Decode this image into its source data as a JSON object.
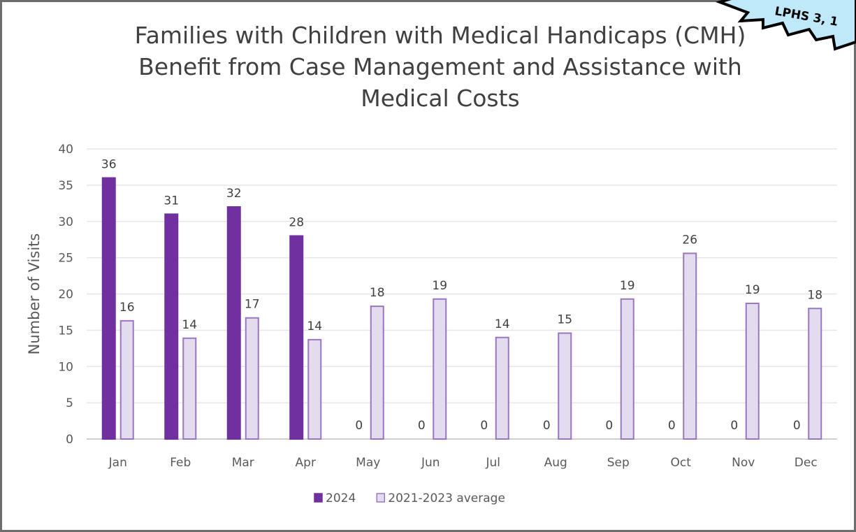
{
  "chart_data": {
    "type": "bar",
    "title_lines": [
      "Families with Children with Medical Handicaps (CMH)",
      "Benefit from Case Management and Assistance with",
      "Medical Costs"
    ],
    "xlabel": "",
    "ylabel": "Number of Visits",
    "ylim": [
      0,
      40
    ],
    "yticks": [
      0,
      5,
      10,
      15,
      20,
      25,
      30,
      35,
      40
    ],
    "grid": true,
    "legend_position": "bottom",
    "categories": [
      "Jan",
      "Feb",
      "Mar",
      "Apr",
      "May",
      "Jun",
      "Jul",
      "Aug",
      "Sep",
      "Oct",
      "Nov",
      "Dec"
    ],
    "series": [
      {
        "name": "2024",
        "values": [
          36,
          31,
          32,
          28,
          0,
          0,
          0,
          0,
          0,
          0,
          0,
          0
        ],
        "labels": [
          "36",
          "31",
          "32",
          "28",
          "0",
          "0",
          "0",
          "0",
          "0",
          "0",
          "0",
          "0"
        ],
        "fill": "#7030a0",
        "stroke": "#7030a0"
      },
      {
        "name": "2021-2023 average",
        "values": [
          16.3,
          13.9,
          16.7,
          13.7,
          18.3,
          19.3,
          14,
          14.6,
          19.3,
          25.6,
          18.7,
          18
        ],
        "labels": [
          "16",
          "14",
          "17",
          "14",
          "18",
          "19",
          "14",
          "15",
          "19",
          "26",
          "19",
          "18"
        ],
        "fill": "#e3dcee",
        "stroke": "#9a76c2"
      }
    ]
  },
  "callout": {
    "text": "LPHS 3, 1",
    "fill": "#bfe9f9",
    "stroke": "#000000"
  }
}
